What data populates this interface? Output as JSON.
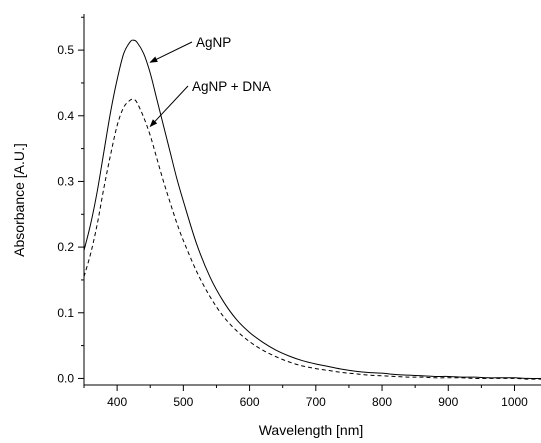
{
  "chart_data": {
    "type": "line",
    "title": "",
    "xlabel": "Wavelength [nm]",
    "ylabel": "Absorbance [A.U.]",
    "xlim": [
      350,
      1040
    ],
    "ylim": [
      -0.01,
      0.555
    ],
    "x_ticks": [
      400,
      500,
      600,
      700,
      800,
      900,
      1000
    ],
    "x_tick_labels": [
      "400",
      "500",
      "600",
      "700",
      "800",
      "900",
      "1000"
    ],
    "y_ticks": [
      0.0,
      0.1,
      0.2,
      0.3,
      0.4,
      0.5
    ],
    "y_tick_labels": [
      "0.0",
      "0.1",
      "0.2",
      "0.3",
      "0.4",
      "0.5"
    ],
    "grid": false,
    "legend": "none",
    "series": [
      {
        "name": "AgNP",
        "line_style": "solid",
        "color": "#000000",
        "x": [
          350,
          360,
          370,
          380,
          390,
          400,
          410,
          420,
          425,
          430,
          440,
          450,
          460,
          470,
          480,
          490,
          500,
          520,
          540,
          560,
          580,
          600,
          620,
          640,
          660,
          680,
          700,
          720,
          740,
          760,
          780,
          800,
          820,
          840,
          860,
          880,
          900,
          920,
          940,
          960,
          980,
          1000,
          1020,
          1040
        ],
        "y": [
          0.195,
          0.235,
          0.285,
          0.345,
          0.405,
          0.455,
          0.495,
          0.513,
          0.515,
          0.512,
          0.495,
          0.465,
          0.425,
          0.385,
          0.345,
          0.305,
          0.27,
          0.205,
          0.155,
          0.118,
          0.09,
          0.07,
          0.055,
          0.043,
          0.034,
          0.027,
          0.022,
          0.018,
          0.014,
          0.011,
          0.009,
          0.008,
          0.006,
          0.005,
          0.004,
          0.003,
          0.003,
          0.002,
          0.002,
          0.001,
          0.001,
          0.001,
          0.0,
          0.0
        ]
      },
      {
        "name": "AgNP + DNA",
        "line_style": "dashed",
        "color": "#000000",
        "x": [
          350,
          360,
          370,
          380,
          390,
          400,
          410,
          420,
          425,
          430,
          440,
          450,
          460,
          470,
          480,
          490,
          500,
          520,
          540,
          560,
          580,
          600,
          620,
          640,
          660,
          680,
          700,
          720,
          740,
          760,
          780,
          800,
          820,
          840,
          860,
          880,
          900,
          920,
          940,
          960,
          980,
          1000,
          1020,
          1040
        ],
        "y": [
          0.155,
          0.19,
          0.235,
          0.29,
          0.34,
          0.385,
          0.413,
          0.424,
          0.425,
          0.42,
          0.398,
          0.37,
          0.335,
          0.3,
          0.268,
          0.237,
          0.21,
          0.163,
          0.125,
          0.095,
          0.073,
          0.056,
          0.043,
          0.033,
          0.025,
          0.019,
          0.015,
          0.012,
          0.009,
          0.007,
          0.005,
          0.004,
          0.003,
          0.002,
          0.002,
          0.001,
          0.001,
          0.001,
          0.0,
          0.0,
          0.0,
          0.0,
          -0.001,
          -0.001
        ]
      }
    ],
    "annotations": [
      {
        "text": "AgNP",
        "points_to_series": "AgNP",
        "points_to_x": 444
      },
      {
        "text": "AgNP + DNA",
        "points_to_series": "AgNP + DNA",
        "points_to_x": 444
      }
    ]
  }
}
